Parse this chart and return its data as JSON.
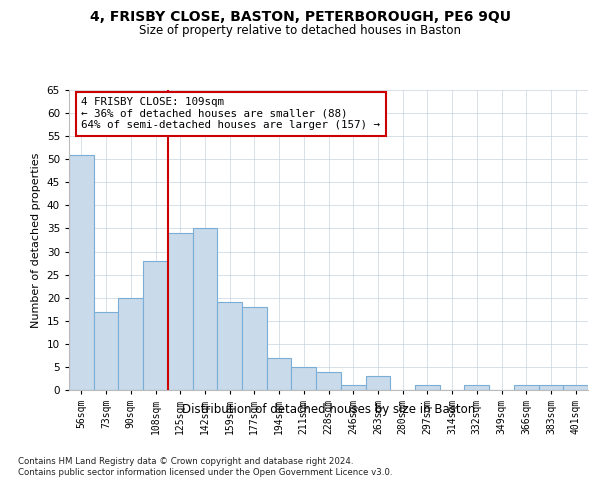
{
  "title1": "4, FRISBY CLOSE, BASTON, PETERBOROUGH, PE6 9QU",
  "title2": "Size of property relative to detached houses in Baston",
  "xlabel": "Distribution of detached houses by size in Baston",
  "ylabel": "Number of detached properties",
  "categories": [
    "56sqm",
    "73sqm",
    "90sqm",
    "108sqm",
    "125sqm",
    "142sqm",
    "159sqm",
    "177sqm",
    "194sqm",
    "211sqm",
    "228sqm",
    "246sqm",
    "263sqm",
    "280sqm",
    "297sqm",
    "314sqm",
    "332sqm",
    "349sqm",
    "366sqm",
    "383sqm",
    "401sqm"
  ],
  "values": [
    51,
    17,
    20,
    28,
    34,
    35,
    19,
    18,
    7,
    5,
    4,
    1,
    3,
    0,
    1,
    0,
    1,
    0,
    1,
    1,
    1
  ],
  "bar_color": "#c9daea",
  "bar_edge_color": "#7aaed6",
  "bar_linewidth": 0.8,
  "vline_color": "#cc0000",
  "annotation_text": "4 FRISBY CLOSE: 109sqm\n← 36% of detached houses are smaller (88)\n64% of semi-detached houses are larger (157) →",
  "annotation_box_color": "#ffffff",
  "annotation_box_edge": "#cc0000",
  "ylim": [
    0,
    65
  ],
  "yticks": [
    0,
    5,
    10,
    15,
    20,
    25,
    30,
    35,
    40,
    45,
    50,
    55,
    60,
    65
  ],
  "background_color": "#ffffff",
  "grid_color": "#c8d4e0",
  "footer": "Contains HM Land Registry data © Crown copyright and database right 2024.\nContains public sector information licensed under the Open Government Licence v3.0."
}
